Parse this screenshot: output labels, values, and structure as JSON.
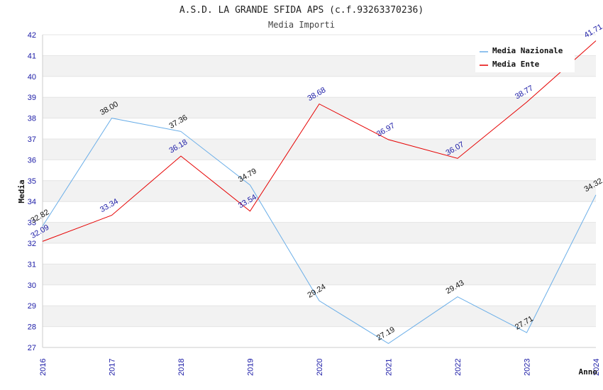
{
  "chart_data": {
    "type": "line",
    "title": "A.S.D. LA GRANDE SFIDA APS (c.f.93263370236)",
    "subtitle": "Media Importi",
    "xlabel": "Anno",
    "ylabel": "Media",
    "x": [
      "2016",
      "2017",
      "2018",
      "2019",
      "2020",
      "2021",
      "2022",
      "2023",
      "2024"
    ],
    "ylim": [
      27,
      42
    ],
    "yticks": [
      "27",
      "28",
      "29",
      "30",
      "31",
      "32",
      "33",
      "34",
      "35",
      "36",
      "37",
      "38",
      "39",
      "40",
      "41",
      "42"
    ],
    "grid": "horizontal bands",
    "legend_position": "top-right",
    "series": [
      {
        "name": "Media Nazionale",
        "color": "#6aaee8",
        "label_color": "#111111",
        "values": [
          32.82,
          38.0,
          37.36,
          34.79,
          29.24,
          27.19,
          29.43,
          27.71,
          34.32
        ],
        "labels": [
          "32.82",
          "38.00",
          "37.36",
          "34.79",
          "29.24",
          "27.19",
          "29.43",
          "27.71",
          "34.32"
        ]
      },
      {
        "name": "Media Ente",
        "color": "#e60000",
        "label_color": "#1a1aa6",
        "values": [
          32.09,
          33.34,
          36.18,
          33.54,
          38.68,
          36.97,
          36.07,
          38.77,
          41.71
        ],
        "labels": [
          "32.09",
          "33.34",
          "36.18",
          "33.54",
          "38.68",
          "36.97",
          "36.07",
          "38.77",
          "41.71"
        ]
      }
    ]
  }
}
